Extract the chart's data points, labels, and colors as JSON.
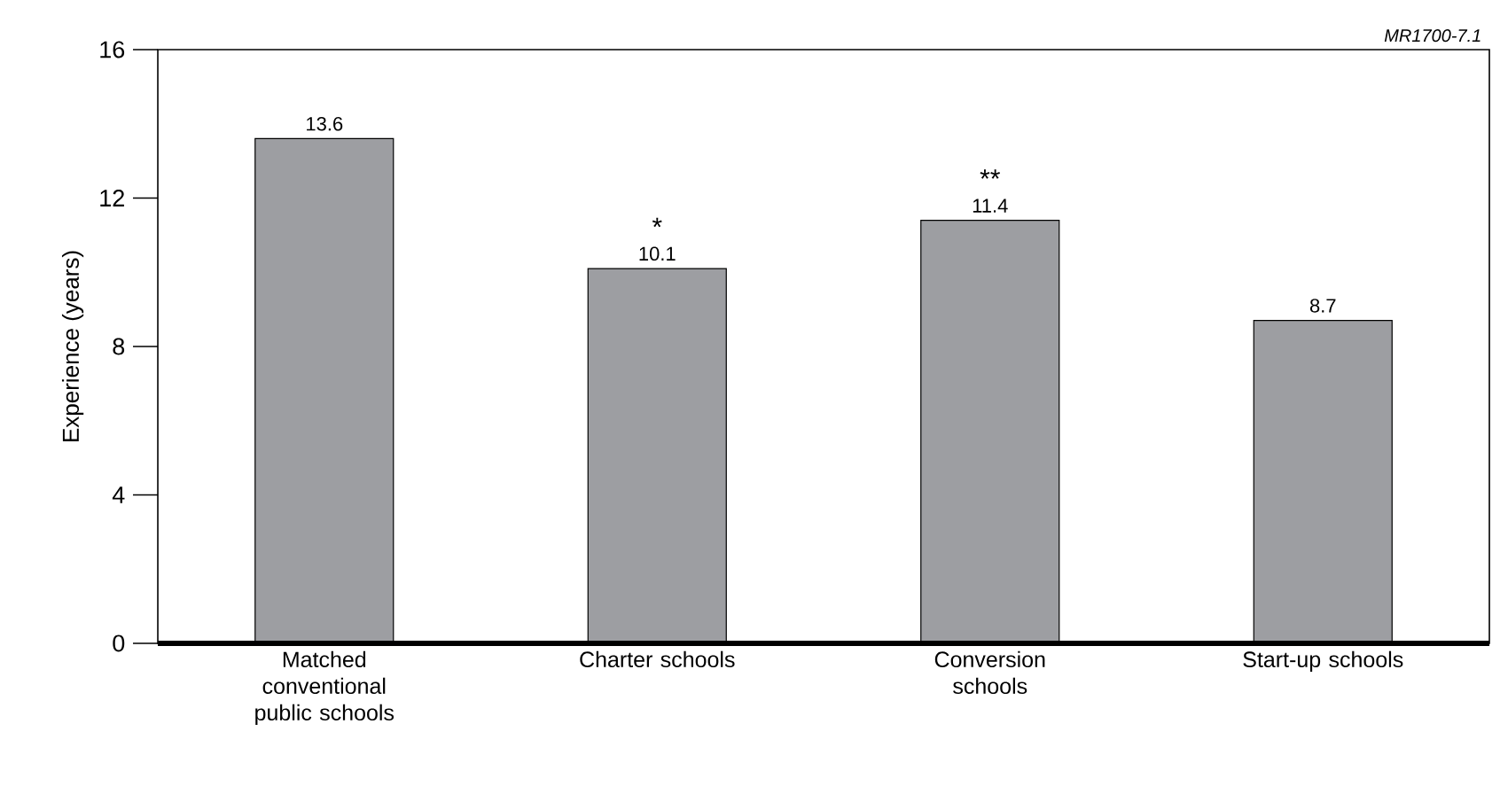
{
  "chart_data": {
    "type": "bar",
    "ylabel": "Experience (years)",
    "categories": [
      "Matched conventional public schools",
      "Charter schools",
      "Conversion schools",
      "Start-up schools"
    ],
    "values": [
      13.6,
      10.1,
      11.4,
      8.7
    ],
    "color": "#9d9ea2",
    "data_labels": true,
    "ylim": [
      0,
      16
    ],
    "yticks": [
      0,
      4,
      8,
      12,
      16
    ],
    "grid": false,
    "annotations": [
      "MR1700-7.1",
      "*",
      "**"
    ]
  }
}
